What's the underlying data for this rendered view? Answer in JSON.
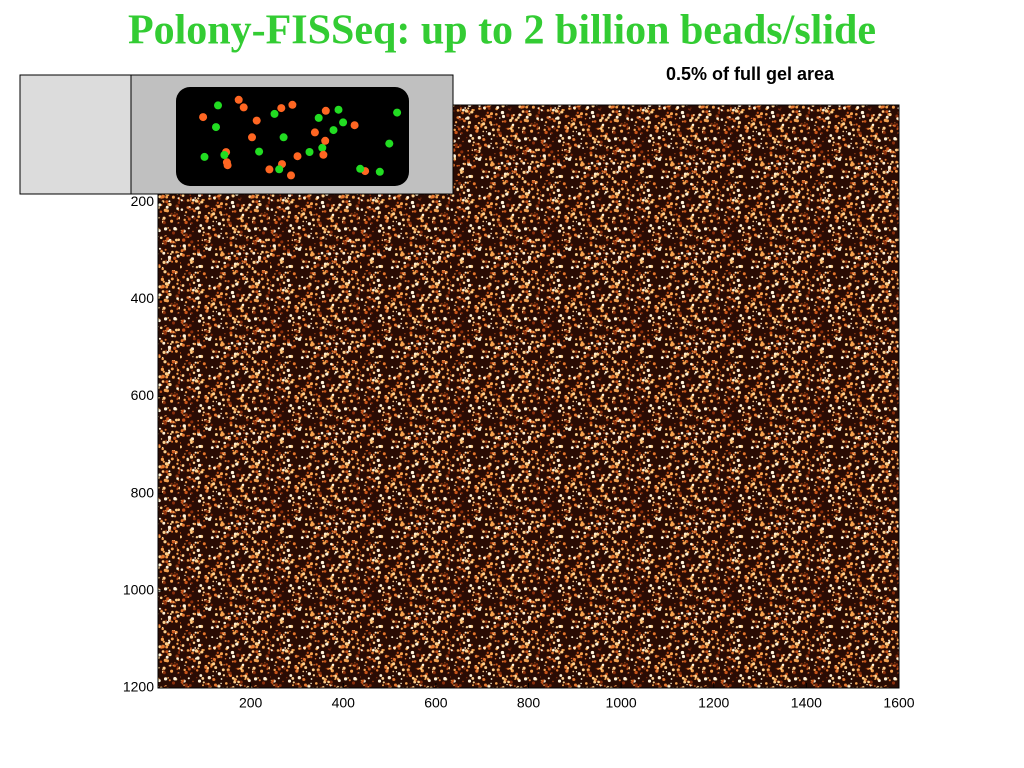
{
  "chart_data": {
    "type": "image",
    "title": "Polony-FISSeq:  up to 2 billion beads/slide",
    "annotation": "0.5% of full gel area",
    "xlim": [
      0,
      1600
    ],
    "xticks": [
      200,
      400,
      600,
      800,
      1000,
      1200,
      1400,
      1600
    ],
    "ylim": [
      1200,
      0
    ],
    "yticks": [
      200,
      400,
      600,
      800,
      1000,
      1200
    ]
  }
}
